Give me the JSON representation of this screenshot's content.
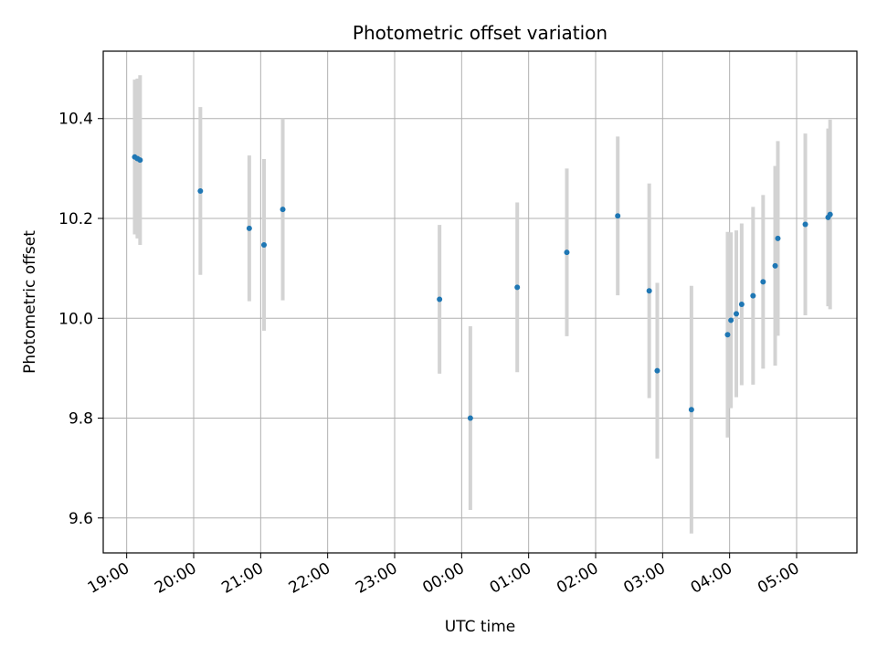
{
  "chart_data": {
    "type": "scatter",
    "title": "Photometric offset variation",
    "xlabel": "UTC time",
    "ylabel": "Photometric offset",
    "x_unit": "hours since 19:00 UTC",
    "xlim": [
      -0.35,
      10.9
    ],
    "ylim": [
      9.53,
      10.535
    ],
    "xticks": [
      {
        "x": 0,
        "label": "19:00"
      },
      {
        "x": 1,
        "label": "20:00"
      },
      {
        "x": 2,
        "label": "21:00"
      },
      {
        "x": 3,
        "label": "22:00"
      },
      {
        "x": 4,
        "label": "23:00"
      },
      {
        "x": 5,
        "label": "00:00"
      },
      {
        "x": 6,
        "label": "01:00"
      },
      {
        "x": 7,
        "label": "02:00"
      },
      {
        "x": 8,
        "label": "03:00"
      },
      {
        "x": 9,
        "label": "04:00"
      },
      {
        "x": 10,
        "label": "05:00"
      }
    ],
    "yticks": [
      {
        "y": 9.6,
        "label": "9.6"
      },
      {
        "y": 9.8,
        "label": "9.8"
      },
      {
        "y": 10.0,
        "label": "10.0"
      },
      {
        "y": 10.2,
        "label": "10.2"
      },
      {
        "y": 10.4,
        "label": "10.4"
      }
    ],
    "grid": true,
    "point_color": "#1f77b4",
    "errorbar_color": "#d3d3d3",
    "points": [
      {
        "x": 0.12,
        "y": 10.323,
        "err": 0.155
      },
      {
        "x": 0.16,
        "y": 10.32,
        "err": 0.16
      },
      {
        "x": 0.2,
        "y": 10.317,
        "err": 0.17
      },
      {
        "x": 1.1,
        "y": 10.255,
        "err": 0.168
      },
      {
        "x": 1.83,
        "y": 10.18,
        "err": 0.146
      },
      {
        "x": 2.05,
        "y": 10.147,
        "err": 0.172
      },
      {
        "x": 2.33,
        "y": 10.218,
        "err": 0.182
      },
      {
        "x": 4.67,
        "y": 10.038,
        "err": 0.149
      },
      {
        "x": 5.13,
        "y": 9.8,
        "err": 0.184
      },
      {
        "x": 5.83,
        "y": 10.062,
        "err": 0.17
      },
      {
        "x": 6.57,
        "y": 10.132,
        "err": 0.168
      },
      {
        "x": 7.33,
        "y": 10.205,
        "err": 0.159
      },
      {
        "x": 7.8,
        "y": 10.055,
        "err": 0.215
      },
      {
        "x": 7.92,
        "y": 9.895,
        "err": 0.176
      },
      {
        "x": 8.43,
        "y": 9.817,
        "err": 0.248
      },
      {
        "x": 8.97,
        "y": 9.967,
        "err": 0.206
      },
      {
        "x": 9.02,
        "y": 9.996,
        "err": 0.176
      },
      {
        "x": 9.1,
        "y": 10.009,
        "err": 0.167
      },
      {
        "x": 9.18,
        "y": 10.028,
        "err": 0.162
      },
      {
        "x": 9.35,
        "y": 10.045,
        "err": 0.178
      },
      {
        "x": 9.5,
        "y": 10.073,
        "err": 0.174
      },
      {
        "x": 9.68,
        "y": 10.105,
        "err": 0.2
      },
      {
        "x": 9.72,
        "y": 10.16,
        "err": 0.195
      },
      {
        "x": 10.13,
        "y": 10.188,
        "err": 0.182
      },
      {
        "x": 10.47,
        "y": 10.202,
        "err": 0.178
      },
      {
        "x": 10.5,
        "y": 10.208,
        "err": 0.19
      }
    ]
  }
}
